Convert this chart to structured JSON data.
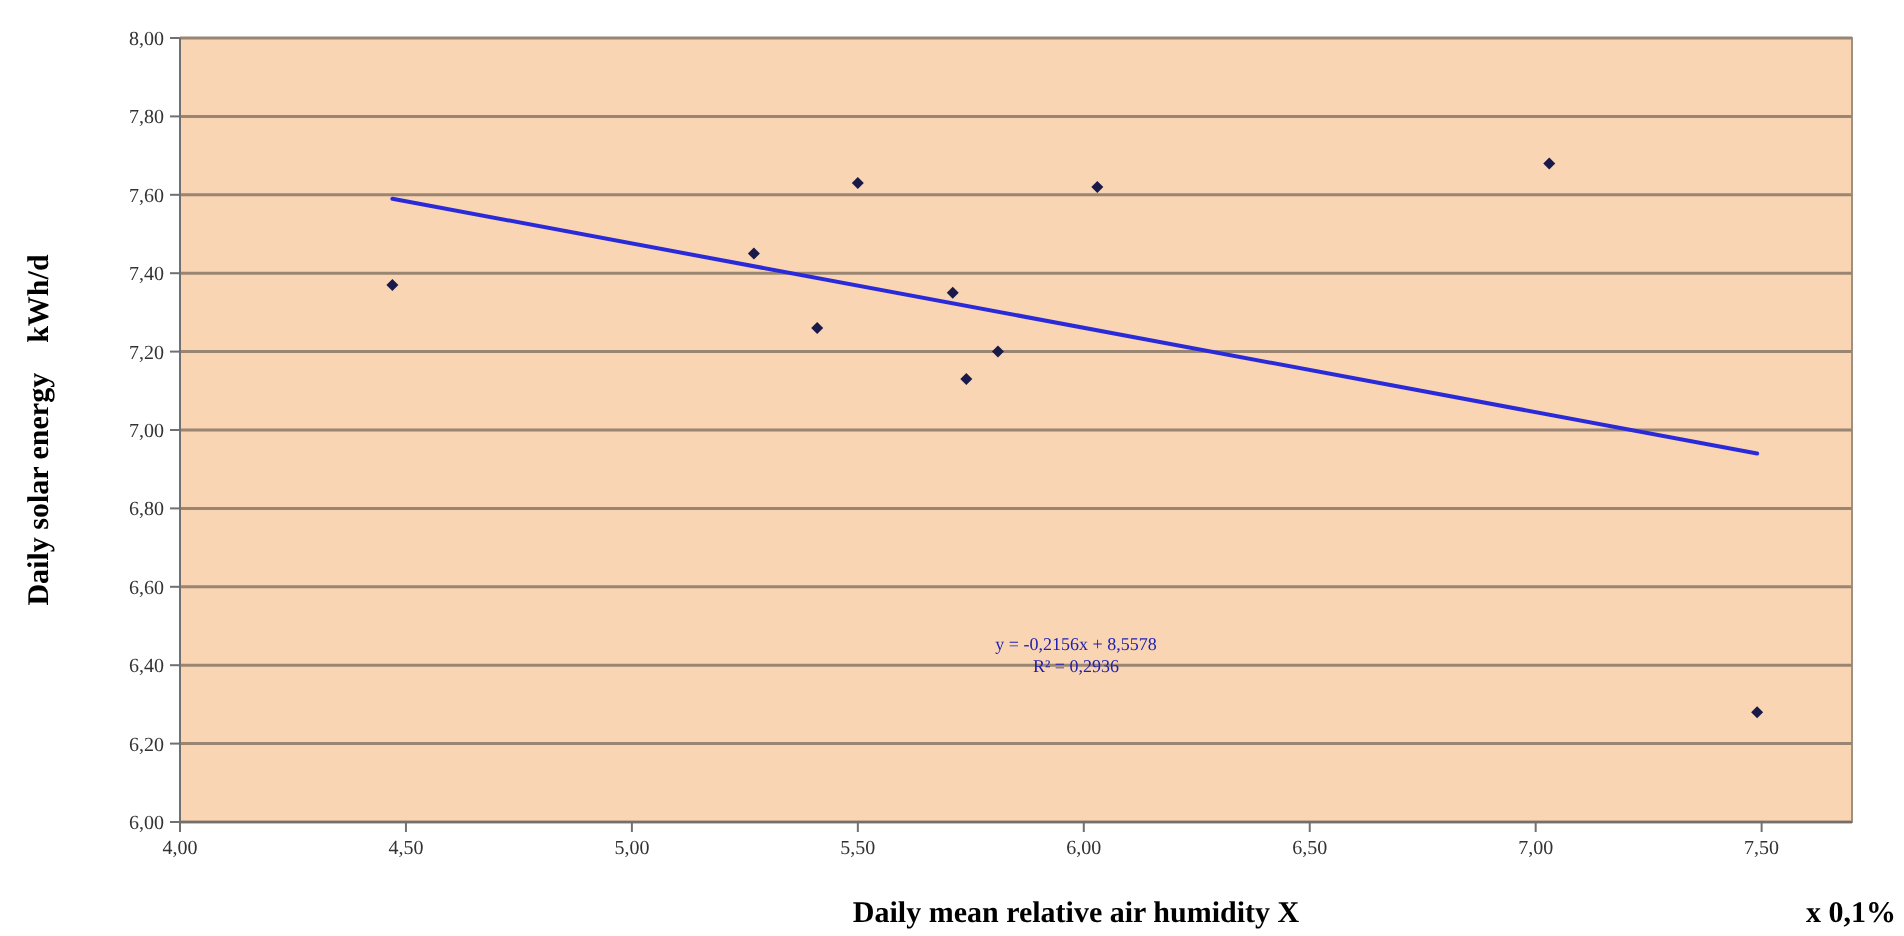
{
  "chart_data": {
    "type": "scatter",
    "xlabel": "Daily mean relative air humidity  X",
    "ylabel": "Daily solar energy    kWh/d",
    "xlim": [
      4,
      7.7
    ],
    "xticks": [
      {
        "value": 4,
        "label": "4,00"
      },
      {
        "value": 4.5,
        "label": "4,50"
      },
      {
        "value": 5,
        "label": "5,00"
      },
      {
        "value": 5.5,
        "label": "5,50"
      },
      {
        "value": 6,
        "label": "6,00"
      },
      {
        "value": 6.5,
        "label": "6,50"
      },
      {
        "value": 7,
        "label": "7,00"
      },
      {
        "value": 7.5,
        "label": "7,50"
      }
    ],
    "ylim": [
      6,
      8
    ],
    "yticks": [
      {
        "value": 6,
        "label": "6,00"
      },
      {
        "value": 6.2,
        "label": "6,20"
      },
      {
        "value": 6.4,
        "label": "6,40"
      },
      {
        "value": 6.6,
        "label": "6,60"
      },
      {
        "value": 6.8,
        "label": "6,80"
      },
      {
        "value": 7,
        "label": "7,00"
      },
      {
        "value": 7.2,
        "label": "7,20"
      },
      {
        "value": 7.4,
        "label": "7,40"
      },
      {
        "value": 7.6,
        "label": "7,60"
      },
      {
        "value": 7.8,
        "label": "7,80"
      },
      {
        "value": 8,
        "label": "8,00"
      }
    ],
    "grid": "y",
    "marker": "diamond",
    "series": [
      {
        "color": "#1a1a4a",
        "x": [
          4.47,
          5.27,
          5.41,
          5.5,
          5.71,
          5.81,
          5.74,
          6.03,
          7.03,
          7.49
        ],
        "values": [
          7.37,
          7.45,
          7.26,
          7.63,
          7.35,
          7.2,
          7.13,
          7.62,
          7.68,
          6.28
        ]
      },
      {
        "type": "line",
        "color": "#2a2ad8",
        "x": [
          4.47,
          7.49
        ],
        "values": [
          7.59,
          6.94
        ],
        "marker": "none",
        "line_style": "solid"
      }
    ],
    "annotations": [
      "y = -0,2156x + 8,5578",
      "R² = 0,2936",
      "x 0,1%"
    ]
  }
}
